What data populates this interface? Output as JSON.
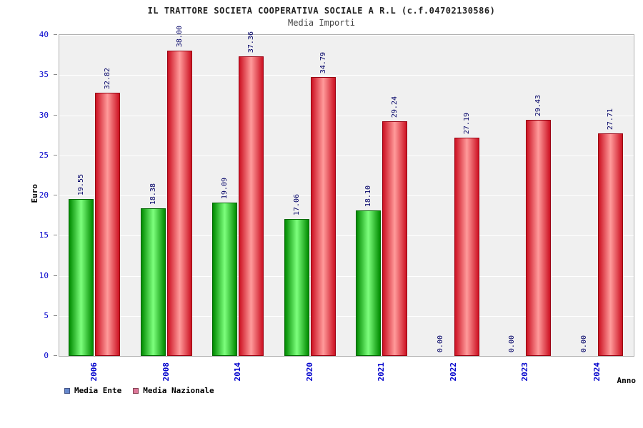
{
  "chart_data": {
    "type": "bar",
    "title": "IL TRATTORE SOCIETA COOPERATIVA SOCIALE A R.L (c.f.04702130586)",
    "subtitle": "Media Importi",
    "xlabel": "Anno",
    "ylabel": "Euro",
    "ylim": [
      0,
      40
    ],
    "ytick_step": 5,
    "grid": "horizontal white gridlines on light gray plot background",
    "legend_position": "bottom-left",
    "value_label_format": "2 decimals, rotated vertical above each bar",
    "categories": [
      "2006",
      "2008",
      "2014",
      "2020",
      "2021",
      "2022",
      "2023",
      "2024"
    ],
    "series": [
      {
        "name": "Media Ente",
        "values": [
          19.55,
          18.38,
          19.09,
          17.06,
          18.1,
          0.0,
          0.0,
          0.0
        ]
      },
      {
        "name": "Media Nazionale",
        "values": [
          32.82,
          38.0,
          37.36,
          34.79,
          29.24,
          27.19,
          29.43,
          27.71
        ]
      }
    ]
  },
  "colors": {
    "ente_bar_edge": "#008a00",
    "ente_bar_center": "#7dff7d",
    "ente_bar_border": "#006600",
    "nazionale_bar_edge": "#cc1122",
    "nazionale_bar_center": "#ff9b9b",
    "nazionale_bar_border": "#990011",
    "axis_tick_label": "#0000cc",
    "value_label": "#000066",
    "legend_ente_swatch": "#6688cc",
    "legend_ente_swatch_border": "#445588",
    "legend_nazionale_swatch": "#dd7799",
    "legend_nazionale_swatch_border": "#884455",
    "plot_background": "#f0f0f0",
    "gridline": "#ffffff"
  }
}
